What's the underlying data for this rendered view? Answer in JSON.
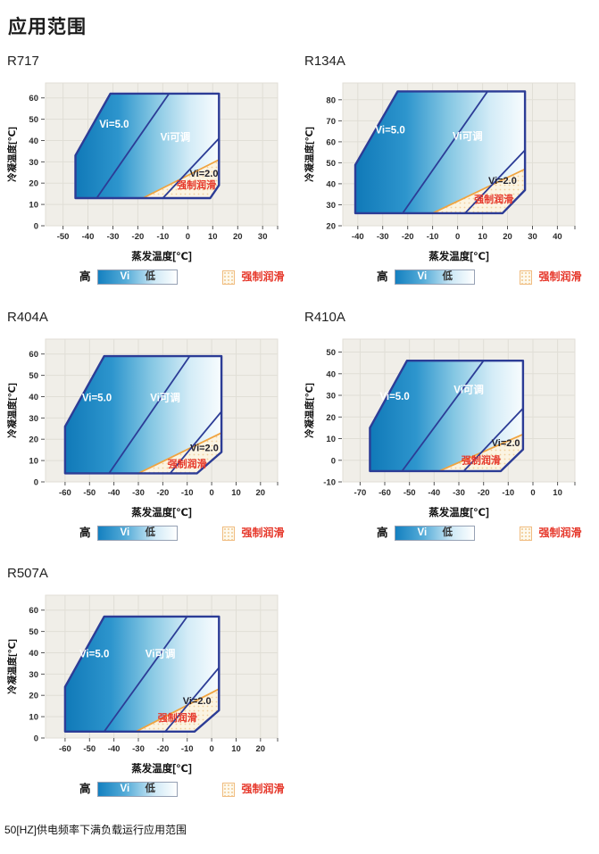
{
  "page": {
    "title": "应用范围",
    "footnote": "50[HZ]供电频率下满负载运行应用范围"
  },
  "legend": {
    "high": "高",
    "vi": "Vi",
    "low": "低",
    "forced": "强制润滑"
  },
  "colors": {
    "envelope_border": "#2c3c96",
    "gradient_stops": [
      "#1079b8",
      "#2d95cd",
      "#85c7e3",
      "#d4ecf7",
      "#f8fcfe"
    ],
    "orange_line": "#f0a440",
    "forced_text": "#e6372a",
    "panel_bg": "#f0eee8",
    "grid": "#e0ded6",
    "lube_fill": "#fbf4e2",
    "lube_dot": "#f1cf9c"
  },
  "chart_data": [
    {
      "type": "area",
      "name": "R717",
      "xlabel": "蒸发温度[℃]",
      "ylabel": "冷凝温度[℃]",
      "xlim": [
        -57,
        36
      ],
      "ylim": [
        0,
        67
      ],
      "xticks": [
        -50,
        -40,
        -30,
        -20,
        -10,
        0,
        10,
        20,
        30
      ],
      "yticks": [
        0,
        10,
        20,
        30,
        40,
        50,
        60
      ],
      "envelope": [
        [
          -45,
          13
        ],
        [
          -45,
          33
        ],
        [
          -31,
          62
        ],
        [
          12.5,
          62
        ],
        [
          12.5,
          19
        ],
        [
          9,
          13
        ]
      ],
      "vi5_line": [
        [
          -36.5,
          13
        ],
        [
          -7.5,
          62
        ]
      ],
      "vi2_line": [
        [
          -10,
          13
        ],
        [
          12.5,
          41
        ]
      ],
      "forced_lube_line": [
        [
          -18,
          13
        ],
        [
          12.5,
          31
        ]
      ],
      "forced_lube_region": [
        [
          -18,
          13
        ],
        [
          12.5,
          31
        ],
        [
          12.5,
          19
        ],
        [
          9,
          13
        ]
      ],
      "labels": [
        {
          "text": "Vi=5.0",
          "x": -29.5,
          "y": 46,
          "style": "white"
        },
        {
          "text": "Vi可调",
          "x": -5,
          "y": 40,
          "style": "white"
        },
        {
          "text": "Vi=2.0",
          "x": 6.5,
          "y": 23,
          "style": "dark"
        },
        {
          "text": "强制润滑",
          "x": 3.5,
          "y": 17.5,
          "style": "red"
        }
      ]
    },
    {
      "type": "area",
      "name": "R134A",
      "xlabel": "蒸发温度[℃]",
      "ylabel": "冷凝温度[℃]",
      "xlim": [
        -46,
        47
      ],
      "ylim": [
        20,
        88
      ],
      "xticks": [
        -40,
        -30,
        -20,
        -10,
        0,
        10,
        20,
        30,
        40
      ],
      "yticks": [
        20,
        30,
        40,
        50,
        60,
        70,
        80
      ],
      "envelope": [
        [
          -41,
          26
        ],
        [
          -41,
          49
        ],
        [
          -24,
          84
        ],
        [
          27,
          84
        ],
        [
          27,
          37
        ],
        [
          18,
          26
        ]
      ],
      "vi5_line": [
        [
          -22,
          26
        ],
        [
          12,
          84
        ]
      ],
      "vi2_line": [
        [
          3,
          26
        ],
        [
          27,
          56
        ]
      ],
      "forced_lube_line": [
        [
          -10,
          26
        ],
        [
          27,
          47
        ]
      ],
      "forced_lube_region": [
        [
          -10,
          26
        ],
        [
          27,
          47
        ],
        [
          27,
          37
        ],
        [
          18,
          26
        ]
      ],
      "labels": [
        {
          "text": "Vi=5.0",
          "x": -27,
          "y": 64,
          "style": "white"
        },
        {
          "text": "Vi可调",
          "x": 4,
          "y": 61,
          "style": "white"
        },
        {
          "text": "Vi=2.0",
          "x": 18,
          "y": 40,
          "style": "dark"
        },
        {
          "text": "强制润滑",
          "x": 14.5,
          "y": 31,
          "style": "red"
        }
      ]
    },
    {
      "type": "area",
      "name": "R404A",
      "xlabel": "蒸发温度[℃]",
      "ylabel": "冷凝温度[℃]",
      "xlim": [
        -68,
        27
      ],
      "ylim": [
        0,
        67
      ],
      "xticks": [
        -60,
        -50,
        -40,
        -30,
        -20,
        -10,
        0,
        10,
        20
      ],
      "yticks": [
        0,
        10,
        20,
        30,
        40,
        50,
        60
      ],
      "envelope": [
        [
          -60,
          4
        ],
        [
          -60,
          26
        ],
        [
          -44,
          59
        ],
        [
          4,
          59
        ],
        [
          4,
          14
        ],
        [
          -6,
          4
        ]
      ],
      "vi5_line": [
        [
          -42,
          4
        ],
        [
          -9,
          59
        ]
      ],
      "vi2_line": [
        [
          -17,
          4
        ],
        [
          4,
          33
        ]
      ],
      "forced_lube_line": [
        [
          -30,
          4
        ],
        [
          4,
          23
        ]
      ],
      "forced_lube_region": [
        [
          -30,
          4
        ],
        [
          4,
          23
        ],
        [
          4,
          14
        ],
        [
          -6,
          4
        ]
      ],
      "labels": [
        {
          "text": "Vi=5.0",
          "x": -47,
          "y": 38,
          "style": "white"
        },
        {
          "text": "Vi可调",
          "x": -19,
          "y": 38,
          "style": "white"
        },
        {
          "text": "Vi=2.0",
          "x": -3,
          "y": 14.5,
          "style": "dark"
        },
        {
          "text": "强制润滑",
          "x": -10,
          "y": 7,
          "style": "red"
        }
      ]
    },
    {
      "type": "area",
      "name": "R410A",
      "xlabel": "蒸发温度[℃]",
      "ylabel": "冷凝温度[℃]",
      "xlim": [
        -77,
        17
      ],
      "ylim": [
        -10,
        56
      ],
      "xticks": [
        -70,
        -60,
        -50,
        -40,
        -30,
        -20,
        -10,
        0,
        10
      ],
      "yticks": [
        -10,
        0,
        10,
        20,
        30,
        40,
        50
      ],
      "envelope": [
        [
          -66,
          -5
        ],
        [
          -66,
          15
        ],
        [
          -51,
          46
        ],
        [
          -4,
          46
        ],
        [
          -4,
          5
        ],
        [
          -13,
          -5
        ]
      ],
      "vi5_line": [
        [
          -53,
          -5
        ],
        [
          -20,
          46
        ]
      ],
      "vi2_line": [
        [
          -28,
          -5
        ],
        [
          -4,
          24
        ]
      ],
      "forced_lube_line": [
        [
          -38,
          -5
        ],
        [
          -4,
          12
        ]
      ],
      "forced_lube_region": [
        [
          -38,
          -5
        ],
        [
          -4,
          12
        ],
        [
          -4,
          5
        ],
        [
          -13,
          -5
        ]
      ],
      "labels": [
        {
          "text": "Vi=5.0",
          "x": -56,
          "y": 28,
          "style": "white"
        },
        {
          "text": "Vi可调",
          "x": -26,
          "y": 31,
          "style": "white"
        },
        {
          "text": "Vi=2.0",
          "x": -11,
          "y": 6.5,
          "style": "dark"
        },
        {
          "text": "强制润滑",
          "x": -21,
          "y": -1.5,
          "style": "red"
        }
      ]
    },
    {
      "type": "area",
      "name": "R507A",
      "xlabel": "蒸发温度[℃]",
      "ylabel": "冷凝温度[℃]",
      "xlim": [
        -68,
        27
      ],
      "ylim": [
        0,
        67
      ],
      "xticks": [
        -60,
        -50,
        -40,
        -30,
        -20,
        -10,
        0,
        10,
        20
      ],
      "yticks": [
        0,
        10,
        20,
        30,
        40,
        50,
        60
      ],
      "envelope": [
        [
          -60,
          3
        ],
        [
          -60,
          24
        ],
        [
          -44,
          57
        ],
        [
          3,
          57
        ],
        [
          3,
          13
        ],
        [
          -7,
          3
        ]
      ],
      "vi5_line": [
        [
          -44,
          3
        ],
        [
          -10,
          57
        ]
      ],
      "vi2_line": [
        [
          -19,
          3
        ],
        [
          3,
          33
        ]
      ],
      "forced_lube_line": [
        [
          -31,
          3
        ],
        [
          3,
          23
        ]
      ],
      "forced_lube_region": [
        [
          -31,
          3
        ],
        [
          3,
          23
        ],
        [
          3,
          13
        ],
        [
          -7,
          3
        ]
      ],
      "labels": [
        {
          "text": "Vi=5.0",
          "x": -48,
          "y": 38,
          "style": "white"
        },
        {
          "text": "Vi可调",
          "x": -21,
          "y": 38,
          "style": "white"
        },
        {
          "text": "Vi=2.0",
          "x": -6,
          "y": 16,
          "style": "dark"
        },
        {
          "text": "强制润滑",
          "x": -14,
          "y": 8,
          "style": "red"
        }
      ]
    }
  ]
}
